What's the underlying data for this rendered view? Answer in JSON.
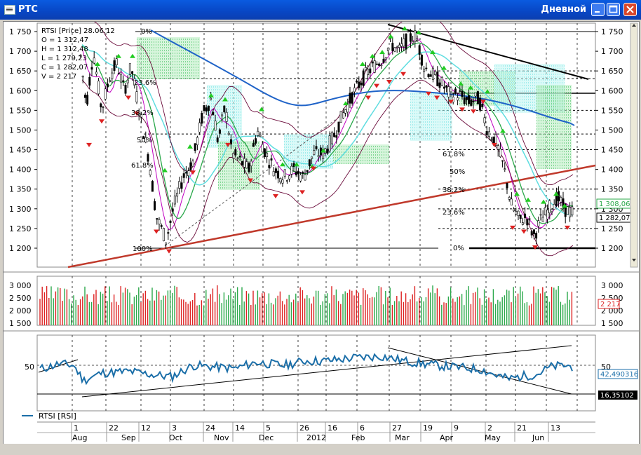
{
  "window": {
    "title": "РТС",
    "period": "Дневной",
    "minimize_icon": "minimize-icon",
    "maximize_icon": "maximize-icon",
    "close_icon": "close-icon"
  },
  "price_panel": {
    "legend_header": "RTSI [Price] 28.06.12",
    "legend_open": "O = 1 312,47",
    "legend_high": "H = 1 312,48",
    "legend_low": "L = 1 279,23",
    "legend_close": "C = 1 282,07",
    "legend_volume": "V = 2 217",
    "y_ticks": [
      "1 750",
      "1 700",
      "1 650",
      "1 600",
      "1 550",
      "1 500",
      "1 450",
      "1 400",
      "1 350",
      "1 300",
      "1 250",
      "1 200"
    ],
    "price_tag_1": "1 308,06",
    "price_tag_2": "1 282,07",
    "fib_left": [
      "0%",
      "23.6%",
      "38.2%",
      "50%",
      "61.8%",
      "100%"
    ],
    "fib_right": [
      "61.8%",
      "50%",
      "38.2%",
      "23.6%",
      "0%"
    ],
    "colors": {
      "support_line": "#c0392b",
      "ma_long": "#1f63c8",
      "ma_cyan": "#5fdde0",
      "ma_green": "#2aa84a",
      "ma_magenta": "#c000c0",
      "bollinger": "#6a0a3a",
      "cloud": "#28b84a",
      "arrow_up": "#22cc22",
      "arrow_down": "#dd2222"
    }
  },
  "volume_panel": {
    "y_ticks": [
      "3 000",
      "2 500",
      "2 000",
      "1 500"
    ],
    "volume_tag": "2 217"
  },
  "rsi_panel": {
    "legend": "RTSI [RSI]",
    "left_tick": "50",
    "right_tick": "50",
    "rsi_tag": "42,490316",
    "level_tag": "16,35102",
    "line_color": "#1a6ea8"
  },
  "time_axis": {
    "days": [
      "1",
      "22",
      "12",
      "3",
      "24",
      "14",
      "5",
      "26",
      "16",
      "6",
      "27",
      "19",
      "9",
      "2",
      "21",
      "13"
    ],
    "months": [
      "Aug",
      "Sep",
      "Oct",
      "Nov",
      "Dec",
      "2012",
      "Feb",
      "Mar",
      "Apr",
      "May",
      "Jun"
    ]
  }
}
